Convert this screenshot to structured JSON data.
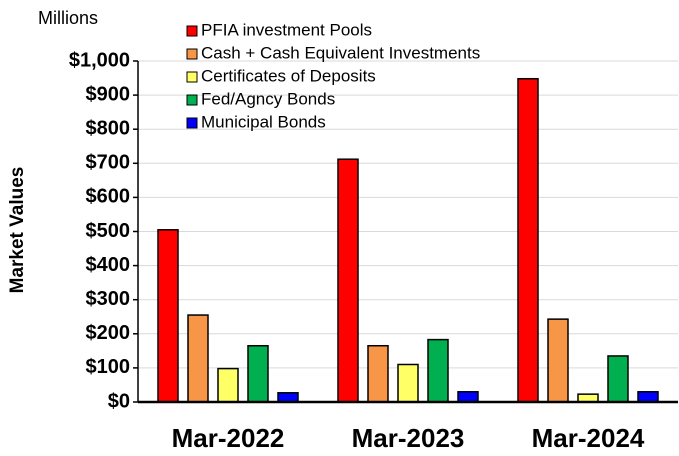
{
  "chart_data": {
    "type": "bar",
    "unit_label": "Millions",
    "y_label": "Market Values",
    "categories": [
      "Mar-2022",
      "Mar-2023",
      "Mar-2024"
    ],
    "series": [
      {
        "name": "PFIA investment Pools",
        "color": "#ff0000",
        "values": [
          505,
          712,
          948
        ]
      },
      {
        "name": "Cash + Cash Equivalent Investments",
        "color": "#f79646",
        "values": [
          255,
          165,
          243
        ]
      },
      {
        "name": "Certificates of Deposits",
        "color": "#ffff66",
        "values": [
          98,
          110,
          23
        ]
      },
      {
        "name": "Fed/Agncy Bonds",
        "color": "#00b050",
        "values": [
          165,
          183,
          135
        ]
      },
      {
        "name": "Municipal Bonds",
        "color": "#0000ff",
        "values": [
          27,
          30,
          30
        ]
      }
    ],
    "ylim": [
      0,
      1000
    ],
    "yticks": [
      {
        "value": 0,
        "label": "$0"
      },
      {
        "value": 100,
        "label": "$100"
      },
      {
        "value": 200,
        "label": "$200"
      },
      {
        "value": 300,
        "label": "$300"
      },
      {
        "value": 400,
        "label": "$400"
      },
      {
        "value": 500,
        "label": "$500"
      },
      {
        "value": 600,
        "label": "$600"
      },
      {
        "value": 700,
        "label": "$700"
      },
      {
        "value": 800,
        "label": "$800"
      },
      {
        "value": 900,
        "label": "$900"
      },
      {
        "value": 1000,
        "label": "$1,000"
      }
    ],
    "grid": true
  }
}
